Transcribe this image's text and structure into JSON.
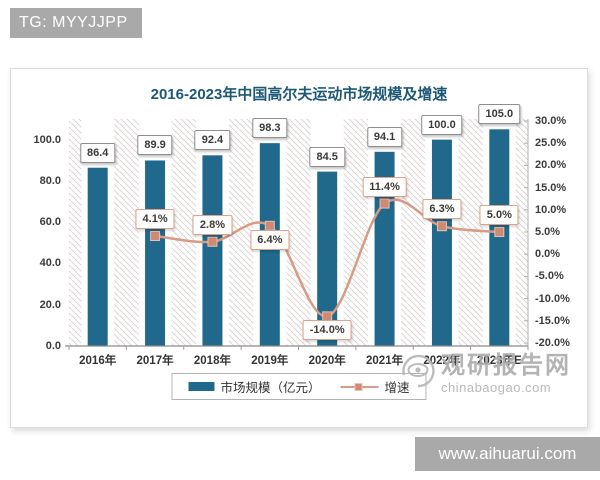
{
  "top_badge": {
    "label": "TG: MYYJJPP"
  },
  "card": {
    "title": "2016-2023年中国高尔夫运动市场规模及增速"
  },
  "chart_data": {
    "type": "bar",
    "title": "2016-2023年中国高尔夫运动市场规模及增速",
    "categories": [
      "2016年",
      "2017年",
      "2018年",
      "2019年",
      "2020年",
      "2021年",
      "2022年",
      "2023年E"
    ],
    "series": [
      {
        "name": "市场规模（亿元）",
        "type": "bar",
        "axis": "left",
        "color": "#20698C",
        "values": [
          86.4,
          89.9,
          92.4,
          98.3,
          84.5,
          94.1,
          100.0,
          105.0
        ],
        "labels": [
          "86.4",
          "89.9",
          "92.4",
          "98.3",
          "84.5",
          "94.1",
          "100.0",
          "105.0"
        ]
      },
      {
        "name": "增速",
        "type": "line",
        "axis": "right",
        "color": "#D69C86",
        "marker_color": "#CD8B74",
        "values": [
          null,
          4.1,
          2.8,
          6.4,
          -14.0,
          11.4,
          6.3,
          5.0
        ],
        "labels": [
          null,
          "4.1%",
          "2.8%",
          "6.4%",
          "-14.0%",
          "11.4%",
          "6.3%",
          "5.0%"
        ]
      }
    ],
    "left_axis": {
      "ticks": [
        "0.0",
        "20.0",
        "40.0",
        "60.0",
        "80.0",
        "100.0"
      ],
      "min": 0,
      "max": 110
    },
    "right_axis": {
      "ticks": [
        "30.0%",
        "25.0%",
        "20.0%",
        "15.0%",
        "10.0%",
        "5.0%",
        "0.0%",
        "-5.0%",
        "-10.0%",
        "-15.0%",
        "-20.0%"
      ],
      "min": -20,
      "max": 30
    },
    "legend": {
      "position": "bottom",
      "entries": [
        "市场规模（亿元）",
        "增速"
      ]
    },
    "grid": "hatched-background"
  },
  "watermark": {
    "name": "观研报告网",
    "domain": "chinabaogao.com"
  },
  "bottom_badge": {
    "label": "www.aihuarui.com"
  }
}
